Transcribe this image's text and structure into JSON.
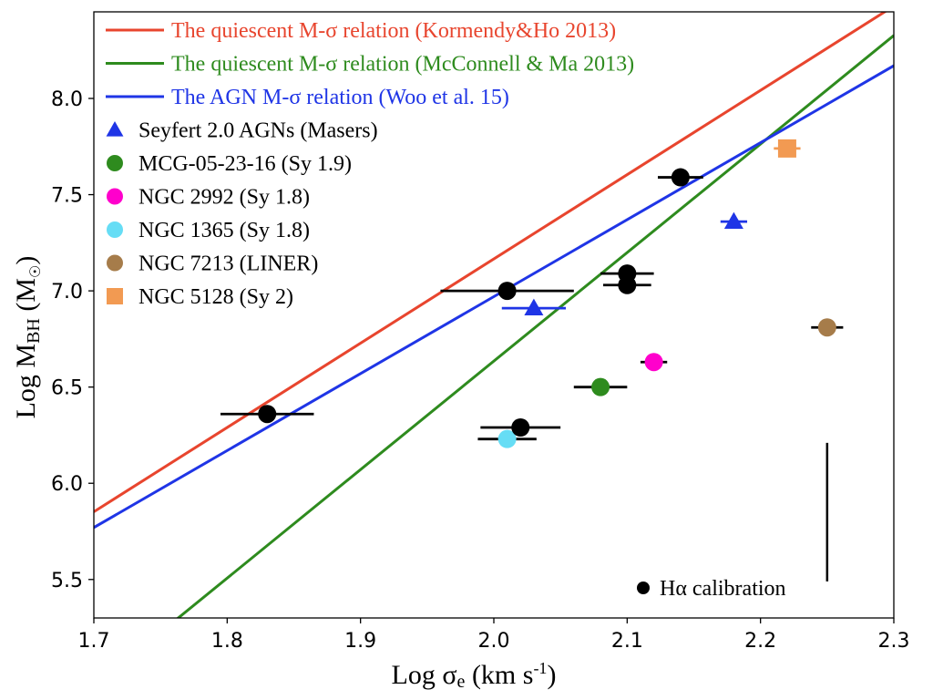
{
  "chart_data": {
    "type": "scatter",
    "xlabel": {
      "main": "Log σ",
      "sub": "e",
      "unit_pre": " (km s",
      "unit_sup": "-1",
      "unit_post": ")"
    },
    "ylabel": {
      "main": "Log M",
      "sub": "BH",
      "unit_pre": "  (M",
      "unit_sub": "☉",
      "unit_post": ")"
    },
    "xlim": [
      1.7,
      2.3
    ],
    "ylim": [
      5.3,
      8.45
    ],
    "xticks": [
      1.7,
      1.8,
      1.9,
      2.0,
      2.1,
      2.2,
      2.3
    ],
    "xtick_labels": [
      "1.7",
      "1.8",
      "1.9",
      "2.0",
      "2.1",
      "2.2",
      "2.3"
    ],
    "yticks": [
      5.5,
      6.0,
      6.5,
      7.0,
      7.5,
      8.0
    ],
    "ytick_labels": [
      "5.5",
      "6.0",
      "6.5",
      "7.0",
      "7.5",
      "8.0"
    ],
    "lines": [
      {
        "name": "The quiescent M-σ  relation (Kormendy&Ho 2013)",
        "color": "#e8452e",
        "slope": 4.38,
        "intercept": -1.594
      },
      {
        "name": "The quiescent M-σ relation (McConnell & Ma 2013)",
        "color": "#2e8b1e",
        "slope": 5.64,
        "intercept": -4.645
      },
      {
        "name": "The AGN M-σ relation (Woo et al. 15)",
        "color": "#1f35e6",
        "slope": 4.0,
        "intercept": -1.03
      }
    ],
    "series": [
      {
        "name": "Seyfert 2.0 AGNs (Masers)",
        "marker": "triangle",
        "color": "#1f35e6",
        "err_color": "#1f35e6",
        "points": [
          {
            "x": 2.03,
            "y": 6.91,
            "xerr": 0.024
          },
          {
            "x": 2.18,
            "y": 7.36,
            "xerr": 0.01
          }
        ]
      },
      {
        "name": "MCG-05-23-16 (Sy 1.9)",
        "marker": "circle",
        "color": "#2e8b1e",
        "err_color": "#000000",
        "points": [
          {
            "x": 2.08,
            "y": 6.5,
            "xerr": 0.02
          }
        ]
      },
      {
        "name": "NGC 2992 (Sy 1.8)",
        "marker": "circle",
        "color": "#ff00cc",
        "err_color": "#000000",
        "points": [
          {
            "x": 2.12,
            "y": 6.63,
            "xerr": 0.01
          }
        ]
      },
      {
        "name": "NGC 1365 (Sy 1.8)",
        "marker": "circle",
        "color": "#66ddf5",
        "err_color": "#000000",
        "points": [
          {
            "x": 2.01,
            "y": 6.23,
            "xerr": 0.022
          }
        ]
      },
      {
        "name": "NGC 7213 (LINER)",
        "marker": "circle",
        "color": "#a67c4a",
        "err_color": "#000000",
        "points": [
          {
            "x": 2.25,
            "y": 6.81,
            "xerr": 0.012
          }
        ]
      },
      {
        "name": "NGC 5128 (Sy 2)",
        "marker": "square",
        "color": "#f29a52",
        "err_color": "#f29a52",
        "points": [
          {
            "x": 2.22,
            "y": 7.74,
            "xerr": 0.01
          }
        ]
      },
      {
        "name": "Hα calibration",
        "marker": "circle",
        "color": "#000000",
        "err_color": "#000000",
        "points": [
          {
            "x": 1.83,
            "y": 6.36,
            "xerr": 0.035
          },
          {
            "x": 2.01,
            "y": 7.0,
            "xerr": 0.05
          },
          {
            "x": 2.02,
            "y": 6.29,
            "xerr": 0.03
          },
          {
            "x": 2.1,
            "y": 7.09,
            "xerr": 0.02
          },
          {
            "x": 2.1,
            "y": 7.03,
            "xerr": 0.018
          },
          {
            "x": 2.14,
            "y": 7.59,
            "xerr": 0.017
          }
        ]
      }
    ],
    "systematic_error_bar": {
      "x": 2.25,
      "y_low": 5.49,
      "y_high": 6.21
    },
    "hα_label": "Hα calibration"
  }
}
